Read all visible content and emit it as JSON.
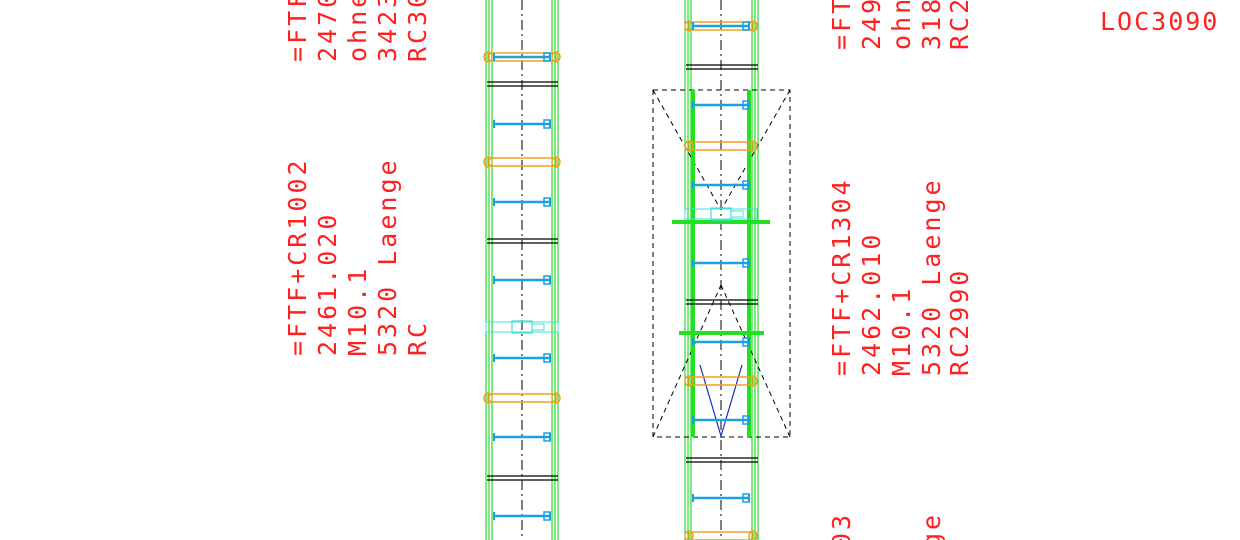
{
  "colors": {
    "background": "#ffffff",
    "rail_green": "#00d000",
    "bright_green": "#22e022",
    "roller_blue": "#1ca0e0",
    "roller_orange": "#f0a020",
    "cyan": "#40e0e0",
    "centerline": "#000000",
    "label_red": "#ff2020",
    "dark_blue": "#1830c0"
  },
  "labels": {
    "left_top": {
      "line1": "=FTF",
      "line2": "2470",
      "line3": "ohne",
      "line4": "3423",
      "line5": "RC30"
    },
    "left_mid": {
      "line1": "=FTF+CR1002",
      "line2": "2461.020",
      "line3": "M10.1",
      "line4": "5320 Laenge",
      "line5": "RC"
    },
    "right_top": {
      "line1": "=FTF",
      "line2": "249",
      "line3": "ohn",
      "line4": "318",
      "line5": "RC2"
    },
    "right_mid": {
      "line1": "=FTF+CR1304",
      "line2": "2462.010",
      "line3": "M10.1",
      "line4": "5320 Laenge",
      "line5": "RC2990"
    },
    "right_bottom": {
      "line1": "03",
      "line2": "ge"
    },
    "location": "LOC3090"
  }
}
